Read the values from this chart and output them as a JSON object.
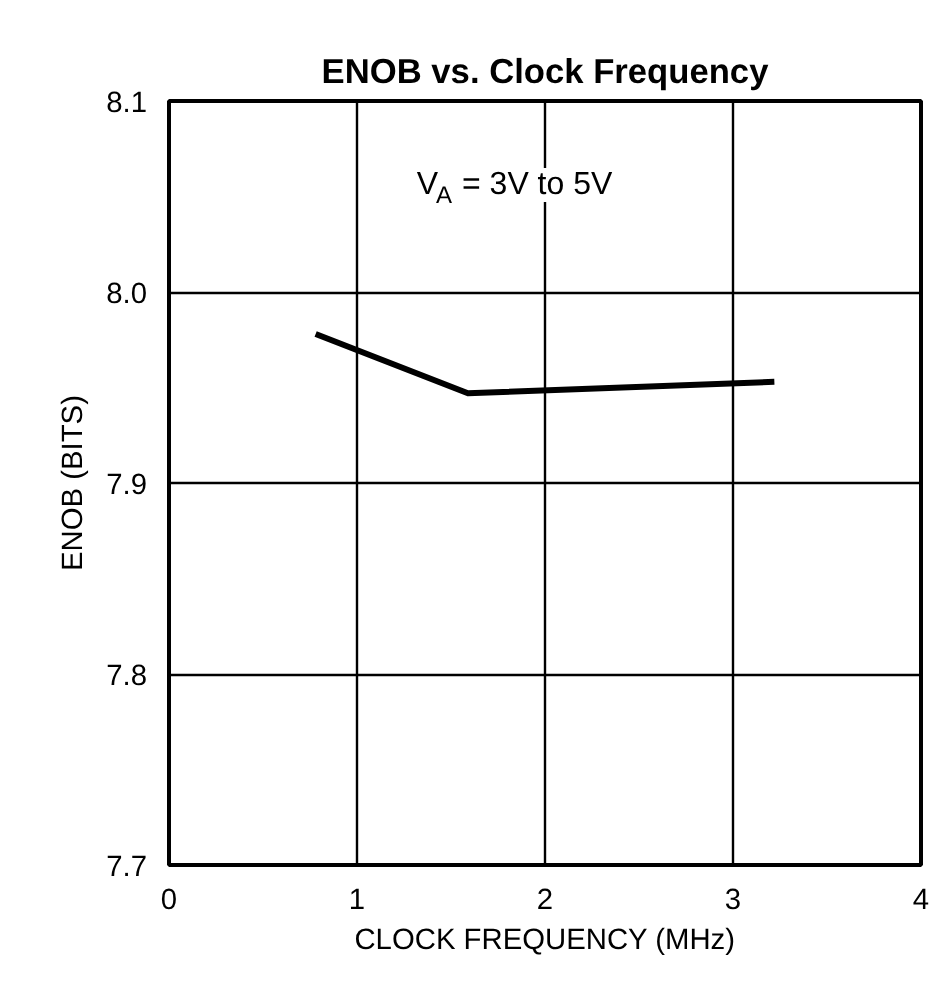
{
  "chart_data": {
    "type": "line",
    "title": "ENOB vs. Clock Frequency",
    "xlabel": "CLOCK FREQUENCY (MHz)",
    "ylabel": "ENOB (BITS)",
    "annotations": [
      "V$_{A}$ = 3V to 5V"
    ],
    "x": [
      0.78,
      1.59,
      3.22
    ],
    "series": [
      {
        "color": "#000000",
        "values": [
          7.978,
          7.947,
          7.953
        ]
      }
    ],
    "xlim": [
      0,
      4
    ],
    "xticks": [
      0,
      1,
      2,
      3,
      4
    ],
    "ylim": [
      7.7,
      8.1
    ],
    "yticks": [
      {
        "value": 7.7,
        "label": "7.7"
      },
      {
        "value": 7.8,
        "label": "7.8"
      },
      {
        "value": 7.9,
        "label": "7.9"
      },
      {
        "value": 8.0,
        "label": "8.0"
      },
      {
        "value": 8.1,
        "label": "8.1"
      }
    ],
    "grid": true,
    "marker": "none",
    "line_style": "solid"
  }
}
